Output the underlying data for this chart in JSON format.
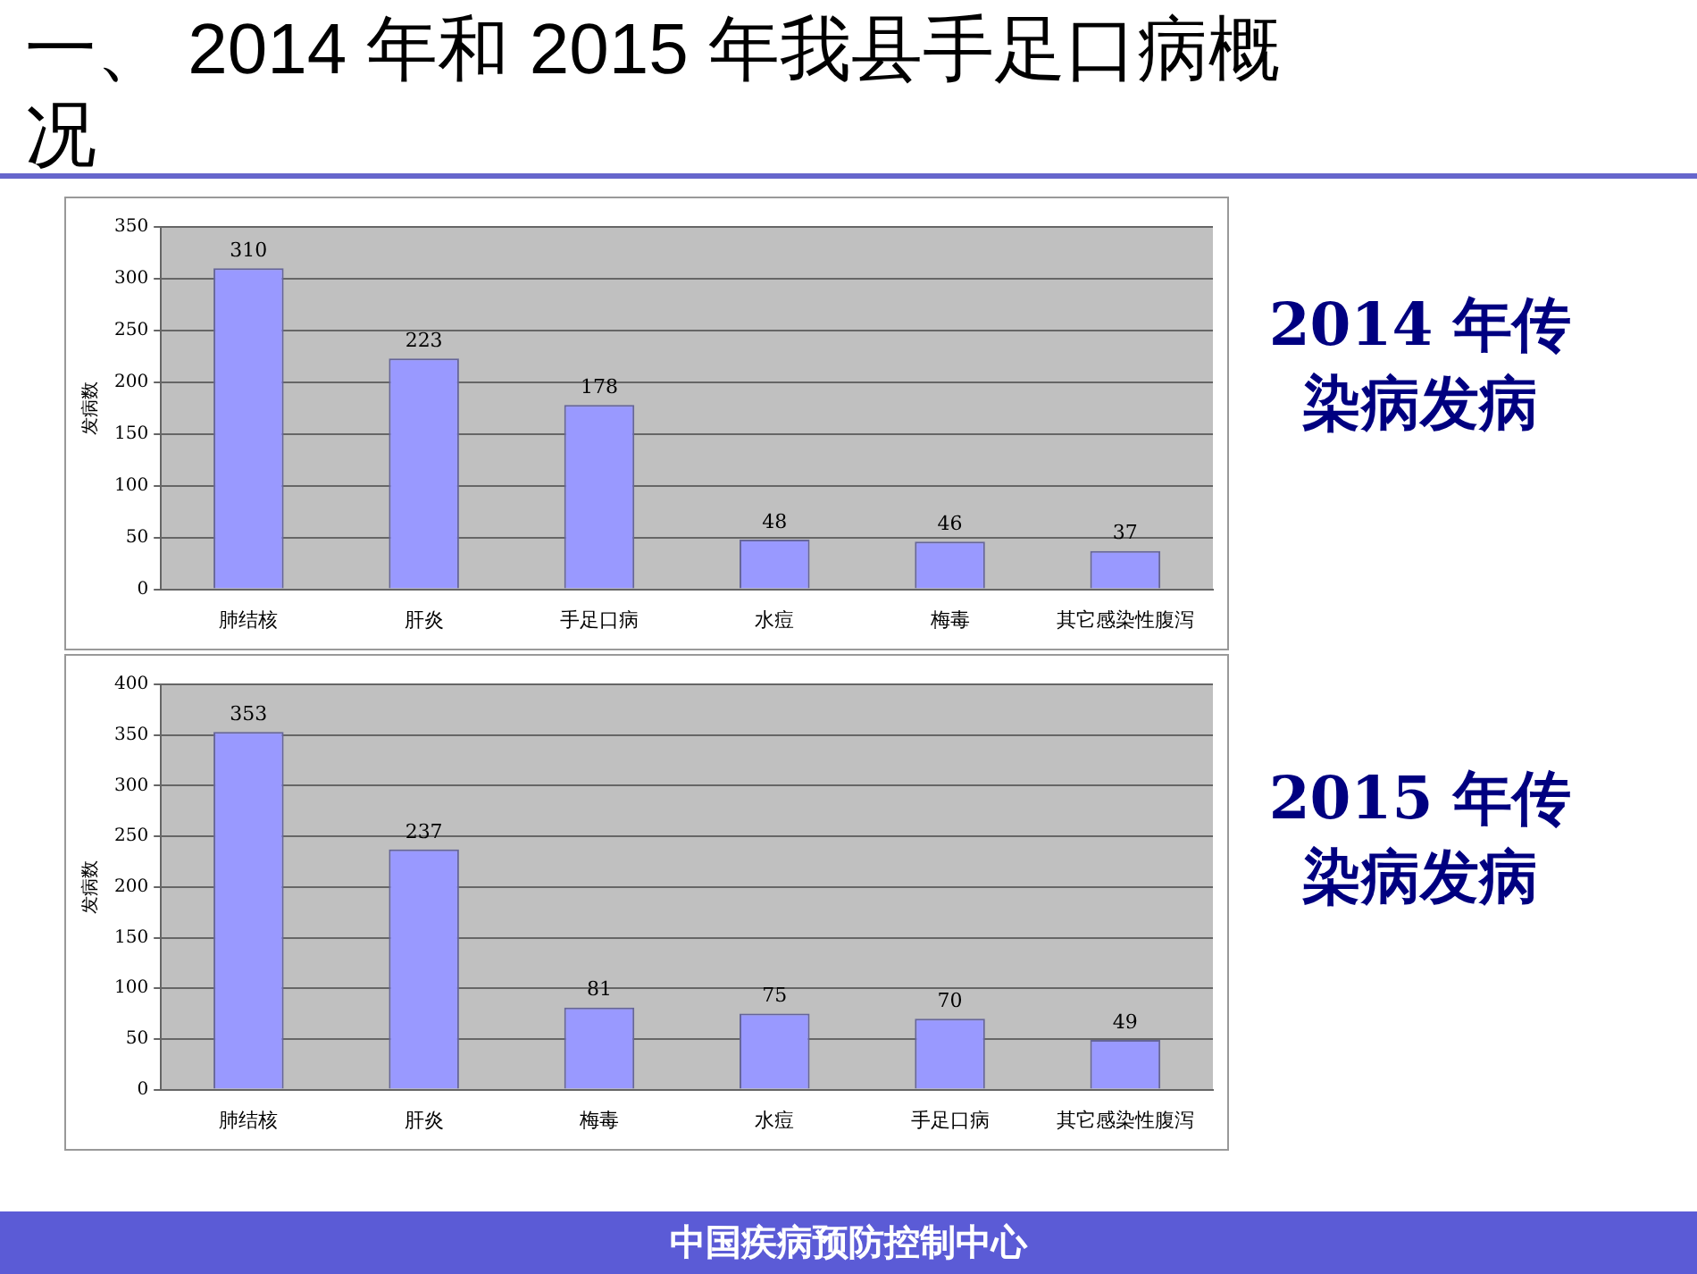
{
  "chart_data": [
    {
      "type": "bar",
      "title": "一、 2014 年和 2015 年我县手足口病概况",
      "annotations": [
        "2014 年传染病发病"
      ],
      "ylabel": "发病数",
      "categories": [
        "肺结核",
        "肝炎",
        "手足口病",
        "水痘",
        "梅毒",
        "其它感染性腹泻"
      ],
      "values": [
        310,
        223,
        178,
        48,
        46,
        37
      ],
      "color": "#9999ff",
      "ylim": [
        0,
        350
      ],
      "yticks": [
        0,
        50,
        100,
        150,
        200,
        250,
        300,
        350
      ],
      "grid": "y",
      "data_labels": true,
      "legend": false
    },
    {
      "type": "bar",
      "ylabel": "发病数",
      "categories": [
        "肺结核",
        "肝炎",
        "梅毒",
        "水痘",
        "手足口病",
        "其它感染性腹泻"
      ],
      "values": [
        353,
        237,
        81,
        75,
        70,
        49
      ],
      "color": "#9999ff",
      "ylim": [
        0,
        400
      ],
      "yticks": [
        0,
        50,
        100,
        150,
        200,
        250,
        300,
        350,
        400
      ],
      "grid": "y",
      "data_labels": true,
      "legend": false,
      "annotations": [
        "2015 年传染病发病",
        "中国疾病预防控制中心"
      ]
    }
  ]
}
